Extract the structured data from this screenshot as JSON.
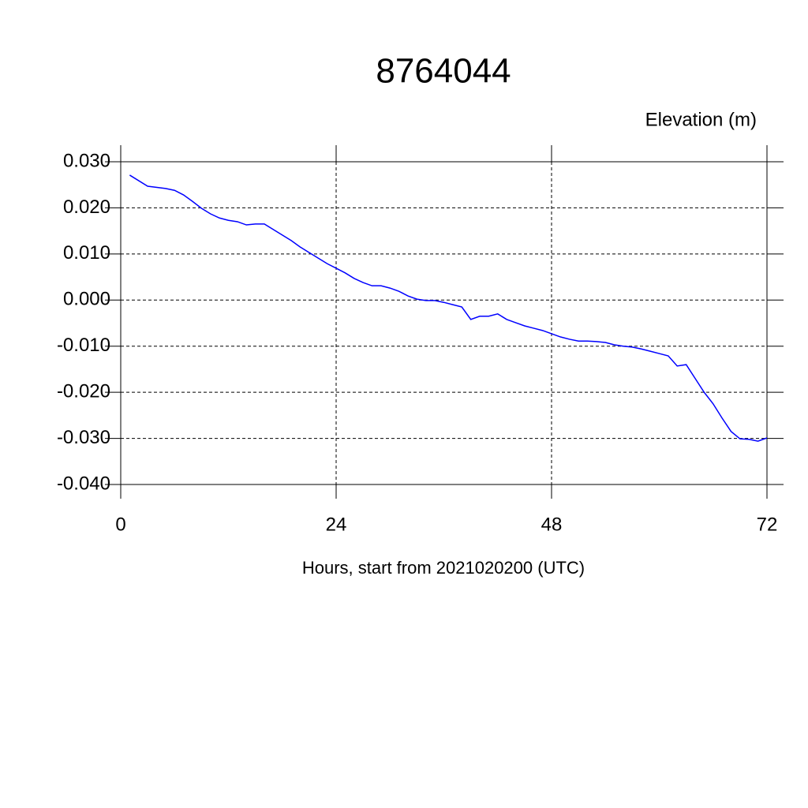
{
  "chart_data": {
    "type": "line",
    "title": "8764044",
    "y_label": "Elevation (m)",
    "x_label": "Hours, start from 2021020200 (UTC)",
    "x": [
      1,
      3,
      5,
      6,
      7,
      8,
      9,
      10,
      11,
      12,
      13,
      14,
      15,
      16,
      17,
      18,
      19,
      20,
      21,
      22,
      23,
      24,
      25,
      26,
      27,
      28,
      29,
      30,
      31,
      32,
      33,
      34,
      35,
      36,
      37,
      38,
      39,
      40,
      41,
      42,
      43,
      44,
      45,
      46,
      47,
      48,
      49,
      50,
      51,
      52,
      53,
      54,
      55,
      56,
      57,
      58,
      59,
      60,
      61,
      62,
      63,
      64,
      65,
      66,
      67,
      68,
      69,
      70,
      71,
      72
    ],
    "series": [
      {
        "name": "Elevation",
        "color": "#0000ff",
        "values": [
          0.0271,
          0.0247,
          0.0242,
          0.0238,
          0.0228,
          0.0214,
          0.0199,
          0.0187,
          0.0178,
          0.0173,
          0.017,
          0.0163,
          0.0165,
          0.0165,
          0.0153,
          0.0141,
          0.0129,
          0.0115,
          0.0103,
          0.0091,
          0.0079,
          0.0069,
          0.0059,
          0.0047,
          0.0038,
          0.0031,
          0.0031,
          0.0026,
          0.0019,
          0.0009,
          0.0002,
          -0.0001,
          -0.0001,
          -0.0005,
          -0.001,
          -0.0015,
          -0.0042,
          -0.0035,
          -0.0035,
          -0.003,
          -0.0042,
          -0.0049,
          -0.0056,
          -0.0061,
          -0.0066,
          -0.0073,
          -0.008,
          -0.0085,
          -0.0089,
          -0.0089,
          -0.009,
          -0.0092,
          -0.0097,
          -0.01,
          -0.0102,
          -0.0106,
          -0.0111,
          -0.0116,
          -0.0121,
          -0.0143,
          -0.014,
          -0.017,
          -0.02,
          -0.0225,
          -0.0256,
          -0.0285,
          -0.0301,
          -0.0302,
          -0.0306,
          -0.0299
        ]
      }
    ],
    "xlim": [
      0,
      72
    ],
    "xticks": [
      0,
      24,
      48,
      72
    ],
    "ylim": [
      -0.04,
      0.03
    ],
    "yticks": [
      {
        "value": -0.04,
        "label": "-0.040"
      },
      {
        "value": -0.03,
        "label": "-0.030"
      },
      {
        "value": -0.02,
        "label": "-0.020"
      },
      {
        "value": -0.01,
        "label": "-0.010"
      },
      {
        "value": 0,
        "label": "0.000"
      },
      {
        "value": 0.01,
        "label": "0.010"
      },
      {
        "value": 0.02,
        "label": "0.020"
      },
      {
        "value": 0.03,
        "label": "0.030"
      }
    ],
    "grid": true
  }
}
